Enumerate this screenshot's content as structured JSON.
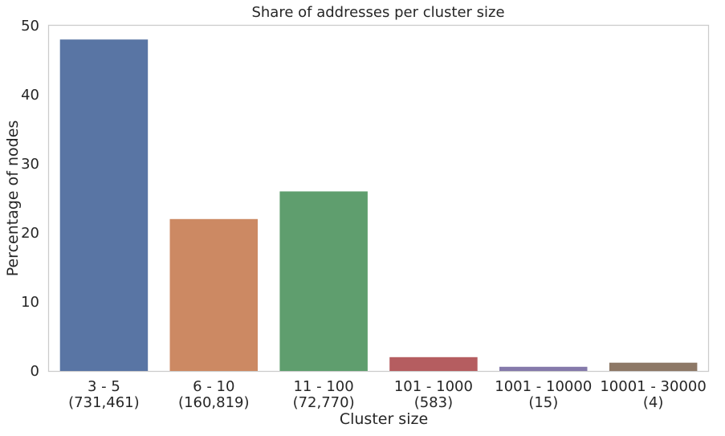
{
  "chart_data": {
    "type": "bar",
    "title": "Share of addresses per cluster size",
    "xlabel": "Cluster size",
    "ylabel": "Percentage of nodes",
    "categories": [
      [
        "3 - 5",
        "(731,461)"
      ],
      [
        "6 - 10",
        "(160,819)"
      ],
      [
        "11 - 100",
        "(72,770)"
      ],
      [
        "101 - 1000",
        "(583)"
      ],
      [
        "1001 - 10000",
        "(15)"
      ],
      [
        "10001 - 30000",
        "(4)"
      ]
    ],
    "values": [
      48.0,
      22.0,
      26.0,
      2.0,
      0.6,
      1.2
    ],
    "colors": [
      "#5975a4",
      "#cc8963",
      "#5f9e6e",
      "#b55d60",
      "#857aab",
      "#8d7866"
    ],
    "ylim": [
      0,
      50
    ],
    "yticks": [
      0,
      10,
      20,
      30,
      40,
      50
    ],
    "grid": false,
    "legend": "none"
  }
}
